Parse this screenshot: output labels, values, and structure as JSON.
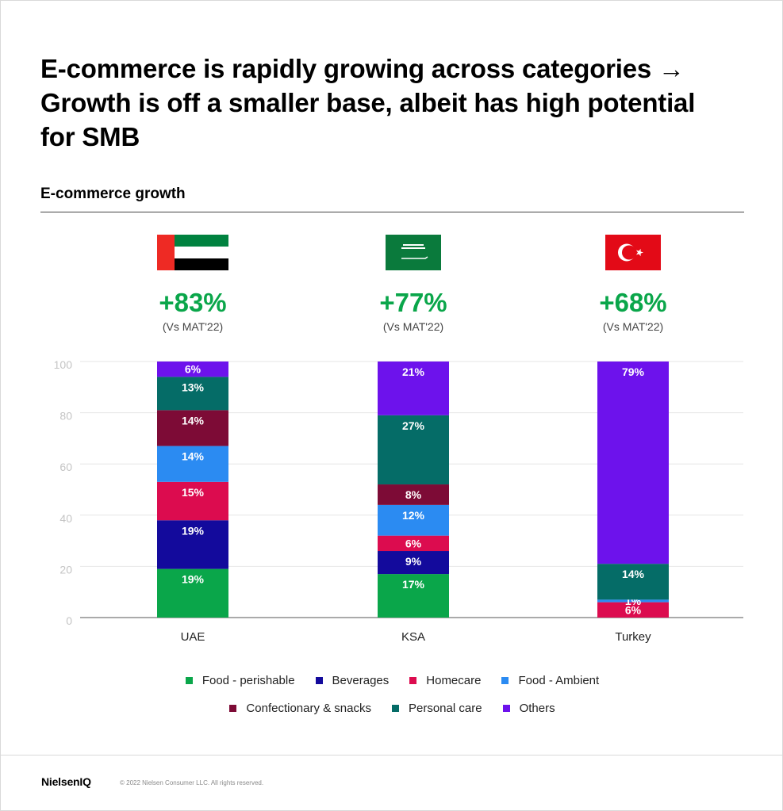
{
  "title": "E-commerce is rapidly growing across categories → Growth is off a smaller base, albeit has high potential for SMB",
  "subtitle": "E-commerce growth",
  "brand": "NielsenIQ",
  "copyright": "© 2022 Nielsen Consumer LLC. All rights reserved.",
  "colors": {
    "food_perishable": "#0aa64a",
    "beverages": "#130a9c",
    "homecare": "#dc0c4f",
    "food_ambient": "#2b8bf2",
    "confectionary": "#7d0b36",
    "personal_care": "#056c67",
    "others": "#6d12ec",
    "growth": "#0aa64a"
  },
  "countries": [
    {
      "name": "UAE",
      "growth": "+83%",
      "growth_note": "(Vs MAT'22)",
      "flag": "uae-flag"
    },
    {
      "name": "KSA",
      "growth": "+77%",
      "growth_note": "(Vs MAT'22)",
      "flag": "ksa-flag"
    },
    {
      "name": "Turkey",
      "growth": "+68%",
      "growth_note": "(Vs MAT'22)",
      "flag": "turkey-flag"
    }
  ],
  "chart_data": {
    "type": "bar",
    "stacked": true,
    "categories": [
      "UAE",
      "KSA",
      "Turkey"
    ],
    "ylim": [
      0,
      100
    ],
    "yticks": [
      0,
      20,
      40,
      60,
      80,
      100
    ],
    "grid": true,
    "legend_position": "bottom",
    "series": [
      {
        "name": "Food - perishable",
        "key": "food_perishable",
        "values": [
          19,
          17,
          0
        ],
        "labels": [
          "19%",
          "17%",
          ""
        ]
      },
      {
        "name": "Beverages",
        "key": "beverages",
        "values": [
          19,
          9,
          0
        ],
        "labels": [
          "19%",
          "9%",
          ""
        ]
      },
      {
        "name": "Homecare",
        "key": "homecare",
        "values": [
          15,
          6,
          6
        ],
        "labels": [
          "15%",
          "6%",
          "6%"
        ]
      },
      {
        "name": "Food - Ambient",
        "key": "food_ambient",
        "values": [
          14,
          12,
          1
        ],
        "labels": [
          "14%",
          "12%",
          "1%"
        ]
      },
      {
        "name": "Confectionary & snacks",
        "key": "confectionary",
        "values": [
          14,
          8,
          0
        ],
        "labels": [
          "14%",
          "8%",
          ""
        ]
      },
      {
        "name": "Personal care",
        "key": "personal_care",
        "values": [
          13,
          27,
          14
        ],
        "labels": [
          "13%",
          "27%",
          "14%"
        ]
      },
      {
        "name": "Others",
        "key": "others",
        "values": [
          6,
          21,
          79
        ],
        "labels": [
          "6%",
          "21%",
          "79%"
        ]
      }
    ]
  }
}
